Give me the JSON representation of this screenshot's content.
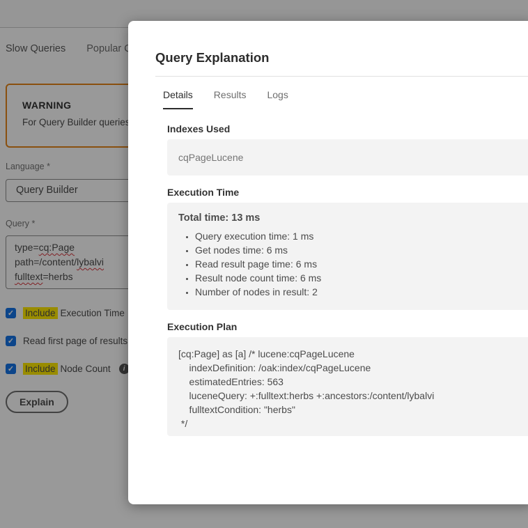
{
  "page": {
    "tabs": [
      {
        "label": "Slow Queries"
      },
      {
        "label": "Popular Quer"
      }
    ],
    "warning": {
      "title": "WARNING",
      "text": "For Query Builder queries, c"
    },
    "language_label": "Language *",
    "language_value": "Query Builder",
    "query_label": "Query *",
    "query_lines": [
      {
        "pre": "type=",
        "mark": "cq:Page",
        "post": ""
      },
      {
        "pre": "path=/content/",
        "mark": "lybalvi",
        "post": ""
      },
      {
        "pre": "",
        "mark": "fulltext",
        "post": "=herbs"
      }
    ],
    "checkboxes": [
      {
        "checked": true,
        "highlight": "Include",
        "label": "Execution Time"
      },
      {
        "checked": true,
        "highlight": "",
        "label": "Read first page of results"
      },
      {
        "checked": true,
        "highlight": "Include",
        "label": "Node Count"
      }
    ],
    "explain_button": "Explain"
  },
  "modal": {
    "title": "Query Explanation",
    "tabs": [
      {
        "label": "Details",
        "active": true
      },
      {
        "label": "Results",
        "active": false
      },
      {
        "label": "Logs",
        "active": false
      }
    ],
    "indexes_used": {
      "heading": "Indexes Used",
      "value": "cqPageLucene"
    },
    "execution_time": {
      "heading": "Execution Time",
      "total": "Total time: 13 ms",
      "items": [
        "Query execution time: 1 ms",
        "Get nodes time: 6 ms",
        "Read result page time: 6 ms",
        "Result node count time: 6 ms",
        "Number of nodes in result: 2"
      ]
    },
    "execution_plan": {
      "heading": "Execution Plan",
      "code": "[cq:Page] as [a] /* lucene:cqPageLucene\n    indexDefinition: /oak:index/cqPageLucene\n    estimatedEntries: 563\n    luceneQuery: +:fulltext:herbs +:ancestors:/content/lybalvi\n    fulltextCondition: \"herbs\"\n */"
    }
  },
  "icons": {
    "check": "✓",
    "info": "i"
  },
  "colors": {
    "accent_blue": "#1473e6",
    "warning_orange": "#e68619",
    "highlight_yellow": "#ffe900"
  }
}
